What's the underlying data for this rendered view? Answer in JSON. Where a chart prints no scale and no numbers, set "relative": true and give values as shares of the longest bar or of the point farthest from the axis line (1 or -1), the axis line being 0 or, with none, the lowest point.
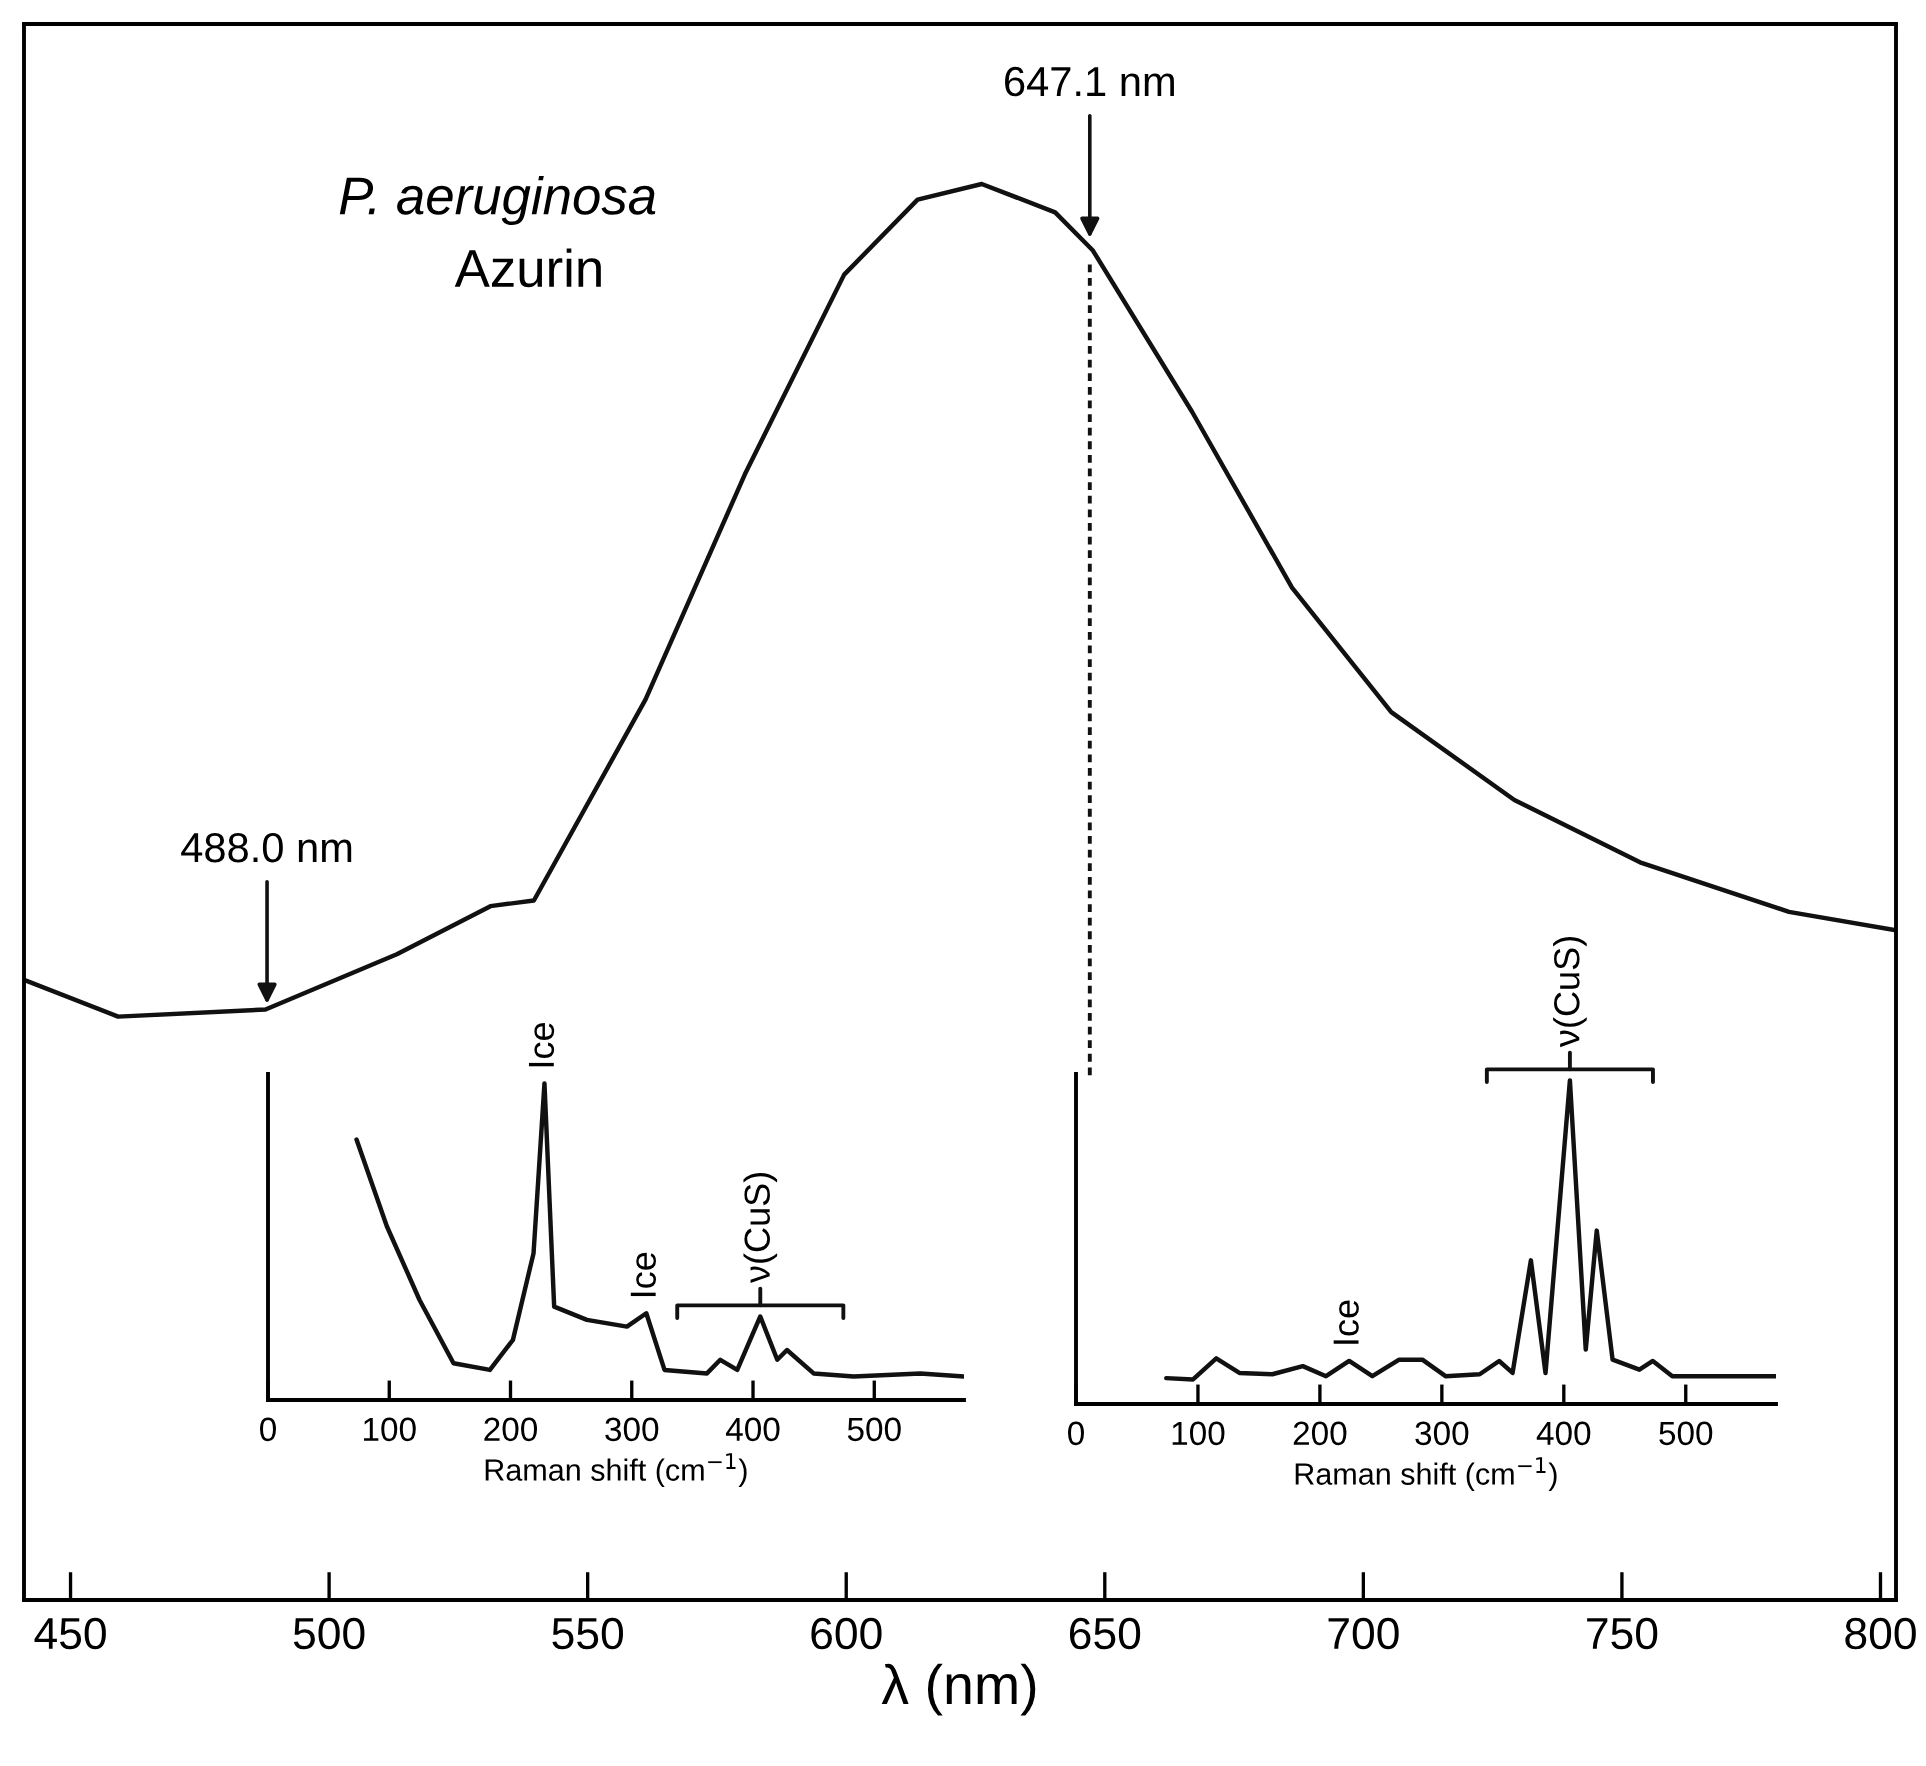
{
  "chart_data": [
    {
      "type": "line",
      "title": "P. aeruginosa",
      "subtitle": "Azurin",
      "xlabel": "λ (nm)",
      "relative": true,
      "tick_labels": "x",
      "grid": false,
      "legend": false,
      "x": [
        441,
        459.2,
        487.7,
        513.1,
        531.2,
        539.6,
        561.2,
        580.4,
        599.6,
        613.8,
        626.2,
        640.4,
        647.7,
        666.9,
        686.2,
        705.4,
        729.2,
        753.5,
        782.3,
        803
      ],
      "series": [
        {
          "color": "#111111",
          "values": [
            0.438,
            0.412,
            0.417,
            0.456,
            0.49,
            0.494,
            0.636,
            0.795,
            0.936,
            0.989,
            1.0,
            0.98,
            0.953,
            0.839,
            0.715,
            0.627,
            0.565,
            0.521,
            0.486,
            0.473
          ]
        }
      ],
      "xlim": [
        441,
        803
      ],
      "xticks": [
        450,
        500,
        550,
        600,
        650,
        700,
        750,
        800
      ],
      "annotations": [
        {
          "text": "488.0 nm",
          "x": 488.0,
          "y": 0.417
        },
        {
          "text": "647.1 nm",
          "x": 647.1,
          "y": 0.958
        }
      ],
      "ref_lines": [
        {
          "axis": "x",
          "value": 647.1,
          "line_style": "dashed"
        }
      ]
    },
    {
      "type": "line",
      "xlabel": "Raman shift (cm$^{−1}$)",
      "relative": true,
      "tick_labels": "x",
      "grid": false,
      "legend": false,
      "x": [
        73,
        98,
        125,
        153,
        183,
        202,
        219,
        228,
        236,
        263,
        296,
        312,
        327,
        362,
        373,
        387,
        406,
        420,
        428,
        450,
        483,
        538,
        574
      ],
      "series": [
        {
          "color": "#111111",
          "values": [
            0.823,
            0.549,
            0.316,
            0.116,
            0.095,
            0.19,
            0.464,
            1.0,
            0.295,
            0.253,
            0.232,
            0.274,
            0.095,
            0.084,
            0.127,
            0.095,
            0.264,
            0.127,
            0.158,
            0.084,
            0.074,
            0.084,
            0.074
          ]
        }
      ],
      "xlim": [
        0,
        574
      ],
      "xticks": [
        0,
        100,
        200,
        300,
        400,
        500
      ],
      "annotations": [
        {
          "text": "Ice",
          "x": 228,
          "y": 1.0
        },
        {
          "text": "Ice",
          "x": 312,
          "y": 0.274
        },
        {
          "text": "ν(CuS)",
          "x": 406,
          "y": 0.264
        }
      ]
    },
    {
      "type": "line",
      "xlabel": "Raman shift (cm$^{−1}$)",
      "relative": true,
      "tick_labels": "x",
      "grid": false,
      "legend": false,
      "x": [
        74,
        96,
        115,
        134,
        161,
        186,
        205,
        224,
        243,
        265,
        284,
        303,
        331,
        347,
        358,
        373,
        385,
        405,
        418,
        427,
        440,
        462,
        473,
        489,
        516,
        574
      ],
      "series": [
        {
          "color": "#111111",
          "values": [
            0.08,
            0.076,
            0.141,
            0.096,
            0.092,
            0.117,
            0.086,
            0.133,
            0.086,
            0.137,
            0.137,
            0.086,
            0.092,
            0.133,
            0.096,
            0.444,
            0.096,
            1.0,
            0.168,
            0.536,
            0.137,
            0.106,
            0.133,
            0.086,
            0.086,
            0.086
          ]
        }
      ],
      "xlim": [
        0,
        574
      ],
      "xticks": [
        0,
        100,
        200,
        300,
        400,
        500
      ],
      "annotations": [
        {
          "text": "Ice",
          "x": 224,
          "y": 0.133
        },
        {
          "text": "ν(CuS)",
          "x": 405,
          "y": 1.0
        }
      ]
    }
  ]
}
